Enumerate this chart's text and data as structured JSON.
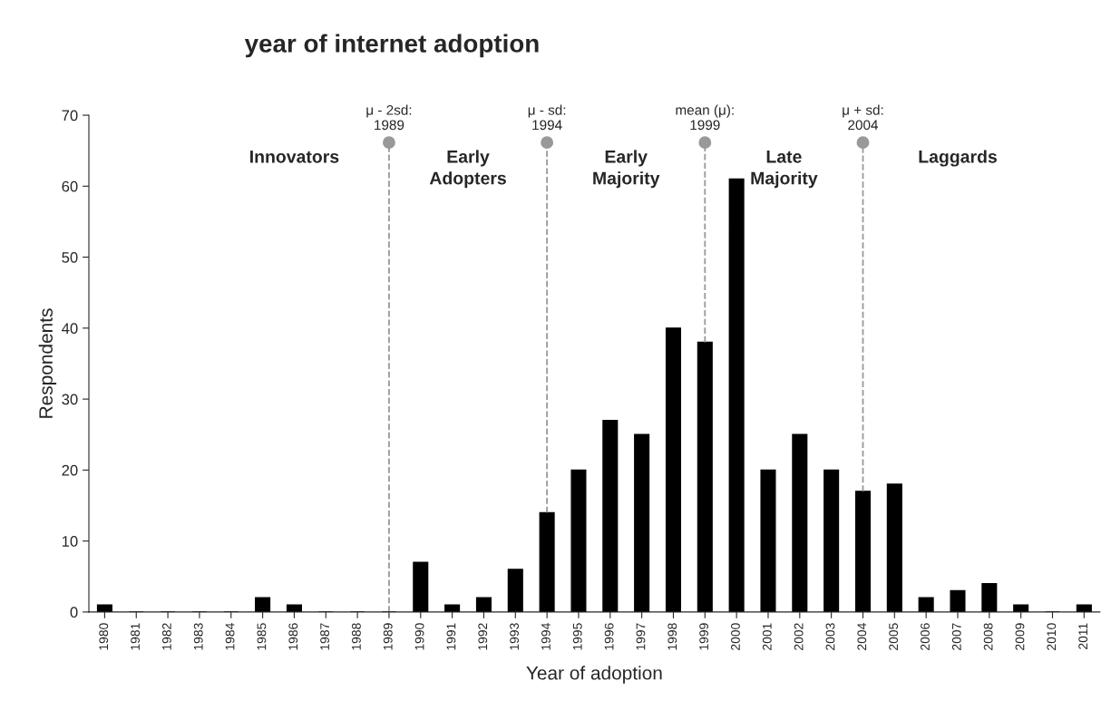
{
  "chart_data": {
    "type": "bar",
    "title": "year of internet adoption",
    "xlabel": "Year of adoption",
    "ylabel": "Respondents",
    "categories": [
      "1980",
      "1981",
      "1982",
      "1983",
      "1984",
      "1985",
      "1986",
      "1987",
      "1988",
      "1989",
      "1990",
      "1991",
      "1992",
      "1993",
      "1994",
      "1995",
      "1996",
      "1997",
      "1998",
      "1999",
      "2000",
      "2001",
      "2002",
      "2003",
      "2004",
      "2005",
      "2006",
      "2007",
      "2008",
      "2009",
      "2010",
      "2011"
    ],
    "values": [
      1,
      0,
      0,
      0,
      0,
      2,
      1,
      0,
      0,
      0,
      7,
      1,
      2,
      6,
      14,
      20,
      27,
      25,
      40,
      38,
      61,
      20,
      25,
      20,
      17,
      18,
      2,
      3,
      4,
      1,
      0,
      1
    ],
    "color": "#000000",
    "ylim": [
      0,
      70
    ],
    "yticks": [
      0,
      10,
      20,
      30,
      40,
      50,
      60,
      70
    ],
    "grid": false,
    "ref_lines": [
      {
        "axis": "x",
        "value": "1989",
        "label": "μ - 2sd:\n1989",
        "color": "#999999",
        "line_style": "dashed"
      },
      {
        "axis": "x",
        "value": "1994",
        "label": "μ - sd:\n1994",
        "color": "#999999",
        "line_style": "dashed"
      },
      {
        "axis": "x",
        "value": "1999",
        "label": "mean (μ):\n1999",
        "color": "#999999",
        "line_style": "dashed"
      },
      {
        "axis": "x",
        "value": "2004",
        "label": "μ + sd:\n2004",
        "color": "#999999",
        "line_style": "dashed"
      }
    ],
    "annotations": [
      "Innovators",
      "Early\nAdopters",
      "Early\nMajority",
      "Late\nMajority",
      "Laggards"
    ]
  }
}
